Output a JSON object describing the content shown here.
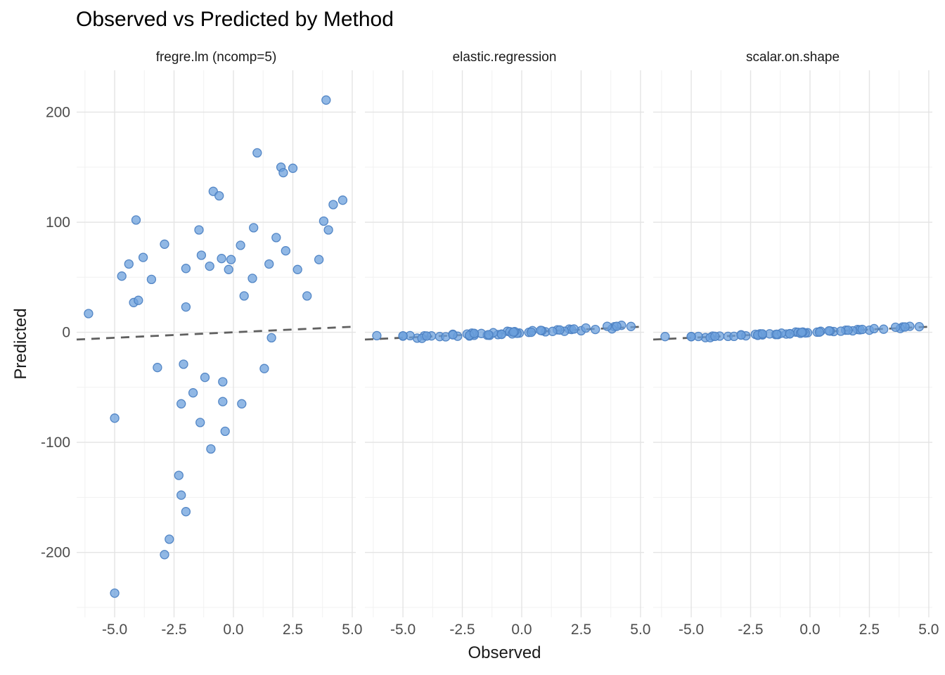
{
  "chart_data": {
    "type": "scatter",
    "title": "Observed vs Predicted by Method",
    "xlabel": "Observed",
    "ylabel": "Predicted",
    "facet_by": "Method",
    "legend": "none",
    "grid": true,
    "xlim": [
      -6.6,
      5.15
    ],
    "ylim": [
      -259,
      238
    ],
    "x_ticks": {
      "values": [
        -5.0,
        -2.5,
        0.0,
        2.5,
        5.0
      ],
      "labels": [
        "-5.0",
        "-2.5",
        "0.0",
        "2.5",
        "5.0"
      ]
    },
    "y_ticks": {
      "values": [
        200,
        100,
        0,
        -100,
        -200
      ],
      "labels": [
        "200",
        "100",
        "0",
        "-100",
        "-200"
      ]
    },
    "x_minor": [
      -6.25,
      -3.75,
      -1.25,
      1.25,
      3.75
    ],
    "y_minor": [
      150,
      50,
      -50,
      -150,
      -250
    ],
    "reference_line": {
      "type": "identity",
      "style": "dashed"
    },
    "colors": {
      "background": "#FFFFFF",
      "point_fill": "#6CA0DC",
      "point_stroke": "#4D82C3",
      "grid_major": "#E4E4E4",
      "grid_minor": "#F1F1F1",
      "dash_line": "#606060",
      "text_dark": "#1A1A1A",
      "text_tick": "#4D4D4D"
    },
    "facets": [
      {
        "name": "fregre.lm (ncomp=5)",
        "points": [
          [
            3.9,
            211
          ],
          [
            1.0,
            163
          ],
          [
            2.0,
            150
          ],
          [
            2.5,
            149
          ],
          [
            2.1,
            145
          ],
          [
            -0.85,
            128
          ],
          [
            -0.6,
            124
          ],
          [
            4.6,
            120
          ],
          [
            4.2,
            116
          ],
          [
            -4.1,
            102
          ],
          [
            3.8,
            101
          ],
          [
            4.0,
            93
          ],
          [
            -1.45,
            93
          ],
          [
            0.85,
            95
          ],
          [
            1.8,
            86
          ],
          [
            -2.9,
            80
          ],
          [
            0.3,
            79
          ],
          [
            2.2,
            74
          ],
          [
            -1.35,
            70
          ],
          [
            -3.8,
            68
          ],
          [
            -0.5,
            67
          ],
          [
            -0.1,
            66
          ],
          [
            3.6,
            66
          ],
          [
            -4.4,
            62
          ],
          [
            1.5,
            62
          ],
          [
            -1.0,
            60
          ],
          [
            -2.0,
            58
          ],
          [
            -0.2,
            57
          ],
          [
            2.7,
            57
          ],
          [
            -4.7,
            51
          ],
          [
            -3.45,
            48
          ],
          [
            0.8,
            49
          ],
          [
            -4.2,
            27
          ],
          [
            -4.0,
            29
          ],
          [
            -2.0,
            23
          ],
          [
            0.45,
            33
          ],
          [
            3.1,
            33
          ],
          [
            -6.1,
            17
          ],
          [
            1.6,
            -5
          ],
          [
            -3.2,
            -32
          ],
          [
            -2.1,
            -29
          ],
          [
            1.3,
            -33
          ],
          [
            -1.2,
            -41
          ],
          [
            -0.45,
            -45
          ],
          [
            -1.7,
            -55
          ],
          [
            -2.2,
            -65
          ],
          [
            -0.45,
            -63
          ],
          [
            0.35,
            -65
          ],
          [
            -5.0,
            -78
          ],
          [
            -1.4,
            -82
          ],
          [
            -0.35,
            -90
          ],
          [
            -0.95,
            -106
          ],
          [
            -2.3,
            -130
          ],
          [
            -2.2,
            -148
          ],
          [
            -2.0,
            -163
          ],
          [
            -2.7,
            -188
          ],
          [
            -2.9,
            -202
          ],
          [
            -5.0,
            -237
          ]
        ]
      },
      {
        "name": "elastic.regression",
        "points": [
          [
            3.9,
            5.1
          ],
          [
            1.0,
            0.4
          ],
          [
            2.0,
            2.9
          ],
          [
            2.5,
            1.4
          ],
          [
            2.1,
            2.5
          ],
          [
            -0.85,
            -1.65
          ],
          [
            -0.6,
            0.9
          ],
          [
            4.6,
            5.3
          ],
          [
            4.2,
            6.3
          ],
          [
            -4.1,
            -3.2
          ],
          [
            3.8,
            3.1
          ],
          [
            4.0,
            5.4
          ],
          [
            -1.45,
            -2.65
          ],
          [
            0.85,
            1.45
          ],
          [
            1.8,
            0.9
          ],
          [
            -2.9,
            -1.8
          ],
          [
            0.3,
            -0.1
          ],
          [
            2.2,
            3.0
          ],
          [
            -1.35,
            -2.75
          ],
          [
            -3.8,
            -3.3
          ],
          [
            -0.5,
            0.5
          ],
          [
            -0.1,
            -0.7
          ],
          [
            3.6,
            5.4
          ],
          [
            -4.4,
            -5.3
          ],
          [
            1.5,
            2.2
          ],
          [
            -1.0,
            -2.1
          ],
          [
            -2.0,
            -1.6
          ],
          [
            -0.2,
            -0.9
          ],
          [
            2.7,
            3.9
          ],
          [
            -4.7,
            -3.1
          ],
          [
            -3.45,
            -3.95
          ],
          [
            0.8,
            1.7
          ],
          [
            -4.2,
            -5.5
          ],
          [
            -4.0,
            -3.4
          ],
          [
            -2.0,
            -2.8
          ],
          [
            0.45,
            1.45
          ],
          [
            3.1,
            2.5
          ],
          [
            -6.1,
            -3.1
          ],
          [
            1.6,
            2.1
          ],
          [
            -3.2,
            -4.1
          ],
          [
            -2.1,
            -0.8
          ],
          [
            1.3,
            0.8
          ],
          [
            -1.2,
            -0.4
          ],
          [
            -0.4,
            -1.4
          ],
          [
            -1.7,
            -1.1
          ],
          [
            -2.2,
            -3.4
          ],
          [
            -0.3,
            0.6
          ],
          [
            0.4,
            0.0
          ],
          [
            -5.0,
            -3.5
          ],
          [
            -1.4,
            -2.2
          ],
          [
            -0.35,
            0.15
          ],
          [
            -0.85,
            -1.95
          ],
          [
            -2.3,
            -1.6
          ],
          [
            -2.2,
            -2.8
          ],
          [
            -2.0,
            -1.0
          ],
          [
            -2.7,
            -3.6
          ],
          [
            -2.9,
            -2.3
          ],
          [
            -5.0,
            -3.2
          ]
        ]
      },
      {
        "name": "scalar.on.shape",
        "points": [
          [
            3.9,
            4.8
          ],
          [
            1.0,
            0.7
          ],
          [
            2.0,
            2.5
          ],
          [
            2.5,
            1.9
          ],
          [
            2.1,
            2.3
          ],
          [
            -0.85,
            -1.25
          ],
          [
            -0.6,
            0.2
          ],
          [
            4.6,
            5.1
          ],
          [
            4.2,
            5.4
          ],
          [
            -4.1,
            -3.5
          ],
          [
            3.8,
            3.4
          ],
          [
            4.0,
            4.8
          ],
          [
            -1.45,
            -2.05
          ],
          [
            0.85,
            1.15
          ],
          [
            1.8,
            1.3
          ],
          [
            -2.9,
            -2.3
          ],
          [
            0.3,
            0.1
          ],
          [
            2.2,
            2.6
          ],
          [
            -1.35,
            -2.05
          ],
          [
            -3.8,
            -3.5
          ],
          [
            -0.5,
            0.0
          ],
          [
            -0.1,
            -0.4
          ],
          [
            3.6,
            4.6
          ],
          [
            -4.4,
            -4.9
          ],
          [
            1.5,
            1.9
          ],
          [
            -1.0,
            -1.6
          ],
          [
            -2.0,
            -1.8
          ],
          [
            -0.2,
            -0.6
          ],
          [
            2.7,
            3.3
          ],
          [
            -4.7,
            -3.8
          ],
          [
            -3.45,
            -3.75
          ],
          [
            0.8,
            1.3
          ],
          [
            -4.2,
            -4.9
          ],
          [
            -4.0,
            -3.7
          ],
          [
            -2.0,
            -2.4
          ],
          [
            0.45,
            0.95
          ],
          [
            3.1,
            2.8
          ],
          [
            -6.1,
            -3.9
          ],
          [
            1.6,
            1.9
          ],
          [
            -3.2,
            -3.7
          ],
          [
            -2.1,
            -1.4
          ],
          [
            1.3,
            1.0
          ],
          [
            -1.2,
            -0.8
          ],
          [
            -0.4,
            -0.9
          ],
          [
            -1.7,
            -1.4
          ],
          [
            -2.2,
            -2.8
          ],
          [
            -0.3,
            0.2
          ],
          [
            0.4,
            0.2
          ],
          [
            -5.0,
            -4.0
          ],
          [
            -1.4,
            -1.8
          ],
          [
            -0.35,
            -0.05
          ],
          [
            -0.85,
            -1.45
          ],
          [
            -2.3,
            -1.9
          ],
          [
            -2.2,
            -2.5
          ],
          [
            -2.0,
            -1.5
          ],
          [
            -2.7,
            -3.2
          ],
          [
            -2.9,
            -2.6
          ],
          [
            -5.0,
            -3.9
          ]
        ]
      }
    ]
  }
}
